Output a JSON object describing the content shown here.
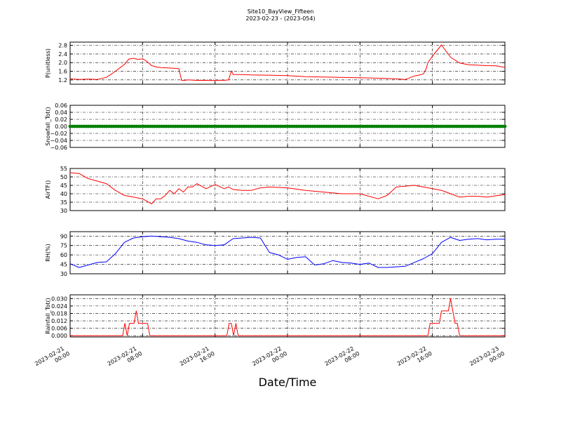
{
  "figure": {
    "title": "Site10_BayView_Fifteen",
    "subtitle": "2023-02-23 - (2023-054)",
    "xlabel": "Date/Time"
  },
  "chart_data": [
    {
      "type": "line",
      "ylabel": "P(unitless)",
      "ylim": [
        1.0,
        2.95
      ],
      "yticks": [
        1.2,
        1.6,
        2.0,
        2.4,
        2.8
      ],
      "ytick_labels": [
        "1.2",
        "1.6",
        "2.0",
        "2.4",
        "2.8"
      ],
      "grid": true,
      "color": "#ff0000",
      "x_hours": [
        0,
        1,
        2,
        3,
        4,
        5,
        6,
        6.5,
        7,
        7.5,
        8,
        8.5,
        9,
        9.5,
        10,
        11,
        12,
        12.3,
        12.5,
        13,
        14,
        15,
        16,
        17,
        17.5,
        17.8,
        18,
        19,
        20,
        22,
        24,
        26,
        28,
        30,
        32,
        34,
        36,
        37,
        38,
        38.5,
        39,
        39.3,
        39.5,
        40,
        41,
        42,
        43,
        44,
        45,
        46,
        47,
        48
      ],
      "y": [
        1.25,
        1.22,
        1.24,
        1.22,
        1.32,
        1.6,
        1.92,
        2.17,
        2.2,
        2.15,
        2.18,
        2.05,
        1.86,
        1.8,
        1.77,
        1.75,
        1.72,
        1.18,
        1.17,
        1.2,
        1.18,
        1.18,
        1.17,
        1.18,
        1.2,
        1.62,
        1.45,
        1.45,
        1.43,
        1.42,
        1.4,
        1.35,
        1.33,
        1.32,
        1.3,
        1.28,
        1.25,
        1.22,
        1.38,
        1.42,
        1.48,
        1.7,
        2.0,
        2.3,
        2.82,
        2.25,
        1.98,
        1.9,
        1.88,
        1.86,
        1.85,
        1.78
      ]
    },
    {
      "type": "line",
      "ylabel": "Snowfall_Tot()",
      "ylim": [
        -0.06,
        0.06
      ],
      "yticks": [
        -0.06,
        -0.04,
        -0.02,
        0.0,
        0.02,
        0.04,
        0.06
      ],
      "ytick_labels": [
        "−0.06",
        "−0.04",
        "−0.02",
        "0.00",
        "0.02",
        "0.04",
        "0.06"
      ],
      "grid": true,
      "color": "#008000",
      "marker": "dot",
      "x_hours": [
        0,
        48
      ],
      "y": [
        0,
        0
      ]
    },
    {
      "type": "line",
      "ylabel": "AirTF()",
      "ylim": [
        30,
        55
      ],
      "yticks": [
        30,
        35,
        40,
        45,
        50,
        55
      ],
      "ytick_labels": [
        "30",
        "35",
        "40",
        "45",
        "50",
        "55"
      ],
      "grid": true,
      "color": "#ff0000",
      "x_hours": [
        0,
        1,
        2,
        3,
        4,
        5,
        6,
        7,
        8,
        9,
        9.5,
        10,
        10.5,
        11,
        11.5,
        12,
        12.5,
        13,
        13.5,
        14,
        15,
        16,
        17,
        17.5,
        18,
        19,
        20,
        21,
        22,
        24,
        26,
        28,
        30,
        32,
        34,
        35,
        36,
        37,
        38,
        39,
        40,
        41,
        42,
        43,
        44,
        45,
        46,
        47,
        48
      ],
      "y": [
        52.5,
        52,
        49,
        47.5,
        46,
        42,
        39,
        38,
        37,
        34,
        37,
        37,
        39,
        42,
        40,
        43,
        41,
        44,
        44,
        46,
        43,
        45.5,
        43,
        44,
        42.5,
        42,
        42,
        43.5,
        44,
        43.5,
        42,
        41,
        40,
        40,
        37,
        39,
        44,
        44.5,
        45,
        44,
        43,
        42,
        40,
        38,
        38.5,
        38.5,
        38,
        38.8,
        39.5
      ]
    },
    {
      "type": "line",
      "ylabel": "RH(%)",
      "ylim": [
        30,
        97
      ],
      "yticks": [
        30,
        45,
        60,
        75,
        90
      ],
      "ytick_labels": [
        "30",
        "45",
        "60",
        "75",
        "90"
      ],
      "grid": true,
      "color": "#0000ff",
      "x_hours": [
        0,
        1,
        2,
        3,
        4,
        5,
        6,
        7,
        8,
        9,
        10,
        11,
        12,
        13,
        14,
        15,
        16,
        17,
        18,
        19,
        20,
        21,
        22,
        23,
        24,
        25,
        26,
        27,
        28,
        29,
        30,
        31,
        32,
        33,
        34,
        35,
        36,
        37,
        38,
        39,
        40,
        41,
        42,
        43,
        44,
        45,
        46,
        47,
        48
      ],
      "y": [
        46,
        40,
        44,
        48,
        49,
        62,
        80,
        87,
        89,
        90,
        89,
        88,
        86,
        82,
        80,
        76,
        75,
        76,
        86,
        87,
        88,
        87,
        64,
        60,
        53,
        56,
        57,
        44,
        46,
        51,
        48,
        47,
        45,
        47,
        40,
        40,
        41,
        42,
        48,
        54,
        62,
        80,
        88,
        83,
        85,
        86,
        84,
        85,
        85
      ]
    },
    {
      "type": "line",
      "ylabel": "Rainfall_Tot()",
      "ylim": [
        -0.001,
        0.033
      ],
      "yticks": [
        0.0,
        0.006,
        0.012,
        0.018,
        0.024,
        0.03
      ],
      "ytick_labels": [
        "0.000",
        "0.006",
        "0.012",
        "0.018",
        "0.024",
        "0.030"
      ],
      "grid": true,
      "color": "#ff0000",
      "x_hours": [
        0,
        5.8,
        6.05,
        6.3,
        6.55,
        6.8,
        7.05,
        7.3,
        7.55,
        7.8,
        8.05,
        8.3,
        8.55,
        8.8,
        9.05,
        17.3,
        17.55,
        17.8,
        18.05,
        18.3,
        18.55,
        18.8,
        39.5,
        39.75,
        40,
        40.25,
        40.5,
        40.75,
        41,
        41.25,
        41.5,
        41.75,
        42,
        42.25,
        42.5,
        42.75,
        43,
        43.25,
        48
      ],
      "y": [
        0,
        0,
        0.01,
        0,
        0.01,
        0.01,
        0.01,
        0.02,
        0.01,
        0.01,
        0.01,
        0.01,
        0.01,
        0,
        0,
        0,
        0.01,
        0.01,
        0,
        0.01,
        0,
        0,
        0,
        0.01,
        0.01,
        0.01,
        0.01,
        0.01,
        0.02,
        0.02,
        0.02,
        0.02,
        0.03,
        0.02,
        0.01,
        0.01,
        0,
        0,
        0
      ]
    }
  ],
  "x_axis": {
    "range_hours": [
      0,
      48
    ],
    "tick_hours": [
      0,
      8,
      16,
      24,
      32,
      40,
      48
    ],
    "tick_labels": [
      [
        "2023-02-21",
        "00:00"
      ],
      [
        "2023-02-21",
        "08:00"
      ],
      [
        "2023-02-21",
        "16:00"
      ],
      [
        "2023-02-22",
        "00:00"
      ],
      [
        "2023-02-22",
        "08:00"
      ],
      [
        "2023-02-22",
        "16:00"
      ],
      [
        "2023-02-23",
        "00:00"
      ]
    ]
  }
}
